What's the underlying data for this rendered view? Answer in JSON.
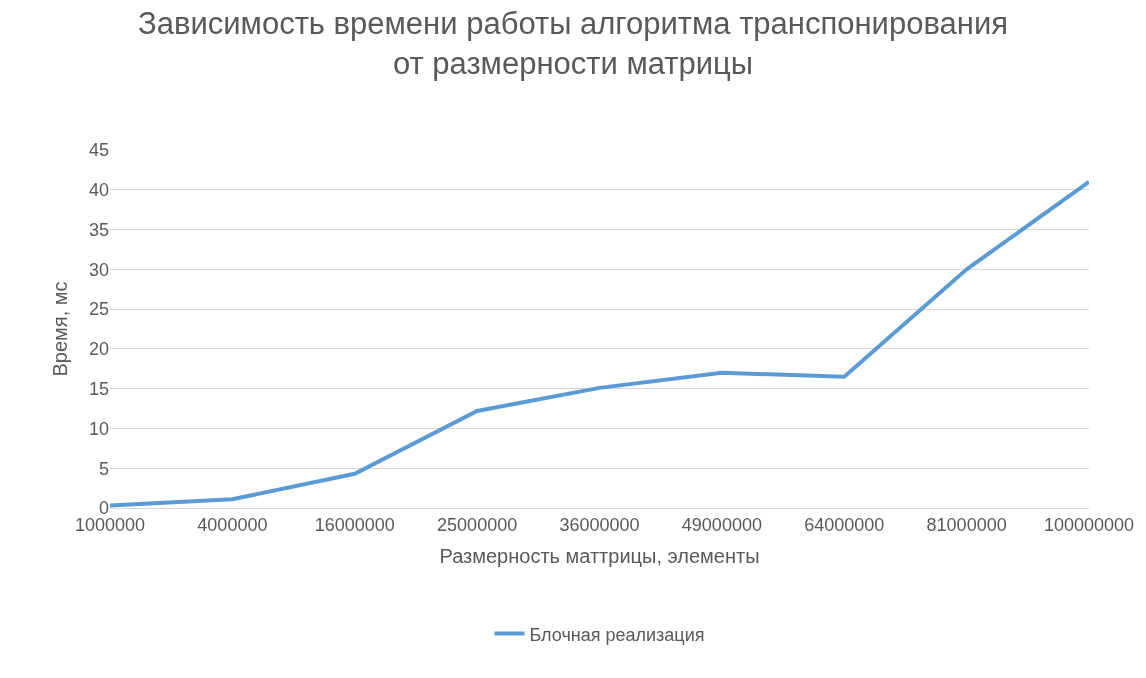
{
  "chart_data": {
    "type": "line",
    "title": "Зависимость времени работы алгоритма транспонирования от размерности матрицы",
    "xlabel": "Размерность маттрицы, элементы",
    "ylabel": "Время, мс",
    "categories": [
      "1000000",
      "4000000",
      "16000000",
      "25000000",
      "36000000",
      "49000000",
      "64000000",
      "81000000",
      "100000000"
    ],
    "series": [
      {
        "name": "Блочная реализация",
        "color": "#5b9bd5",
        "values": [
          0.3,
          1.1,
          4.3,
          12.2,
          15.1,
          17.0,
          16.5,
          30.0,
          41.0
        ]
      }
    ],
    "ylim": [
      0,
      45
    ],
    "yticks": [
      0,
      5,
      10,
      15,
      20,
      25,
      30,
      35,
      40,
      45
    ],
    "grid": "y",
    "legend": "bottom",
    "marker": "none",
    "line_style": "solid"
  }
}
